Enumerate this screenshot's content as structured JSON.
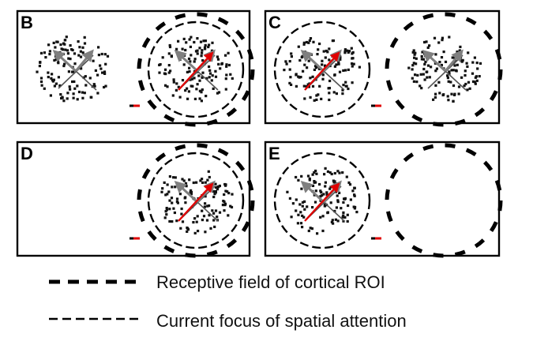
{
  "panels": [
    {
      "label": "B",
      "attention": "right",
      "rf": "right",
      "stimuli": [
        "left",
        "right"
      ]
    },
    {
      "label": "C",
      "attention": "left",
      "rf": "right",
      "stimuli": [
        "left",
        "right"
      ]
    },
    {
      "label": "D",
      "attention": "right",
      "rf": "right",
      "stimuli": [
        "right"
      ]
    },
    {
      "label": "E",
      "attention": "left",
      "rf": "right",
      "stimuli": [
        "left"
      ]
    }
  ],
  "legend": {
    "rf_label": "Receptive field of cortical ROI",
    "attention_label": "Current focus of spatial attention"
  },
  "colors": {
    "frame": "#000000",
    "dots": "#111111",
    "gray_arrow": "#7f7f7f",
    "red_arrow": "#e00000"
  }
}
